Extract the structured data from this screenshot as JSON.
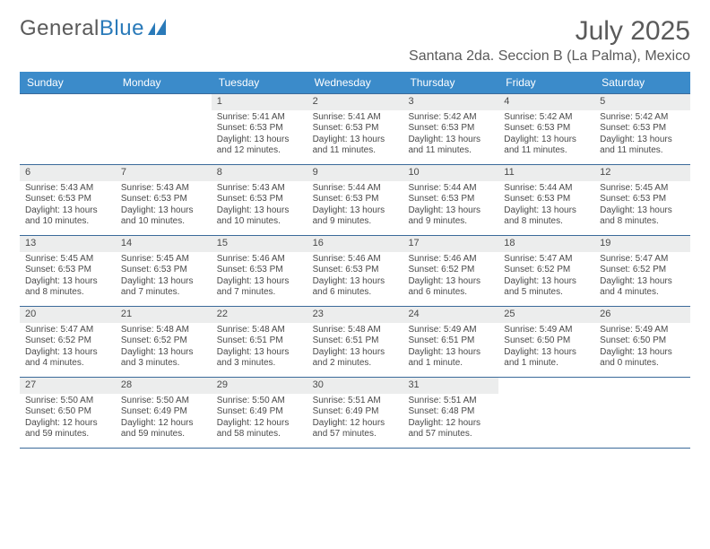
{
  "brand": {
    "part1": "General",
    "part2": "Blue"
  },
  "title": "July 2025",
  "location": "Santana 2da. Seccion B (La Palma), Mexico",
  "colors": {
    "header_bg": "#3b8bca",
    "header_text": "#ffffff",
    "rule": "#3b6a9a",
    "daynum_bg": "#eceded",
    "text": "#4a4a4a",
    "brand_blue": "#2a7ab9"
  },
  "day_names": [
    "Sunday",
    "Monday",
    "Tuesday",
    "Wednesday",
    "Thursday",
    "Friday",
    "Saturday"
  ],
  "first_weekday_index": 2,
  "days": [
    {
      "n": 1,
      "sunrise": "5:41 AM",
      "sunset": "6:53 PM",
      "daylight": "13 hours and 12 minutes."
    },
    {
      "n": 2,
      "sunrise": "5:41 AM",
      "sunset": "6:53 PM",
      "daylight": "13 hours and 11 minutes."
    },
    {
      "n": 3,
      "sunrise": "5:42 AM",
      "sunset": "6:53 PM",
      "daylight": "13 hours and 11 minutes."
    },
    {
      "n": 4,
      "sunrise": "5:42 AM",
      "sunset": "6:53 PM",
      "daylight": "13 hours and 11 minutes."
    },
    {
      "n": 5,
      "sunrise": "5:42 AM",
      "sunset": "6:53 PM",
      "daylight": "13 hours and 11 minutes."
    },
    {
      "n": 6,
      "sunrise": "5:43 AM",
      "sunset": "6:53 PM",
      "daylight": "13 hours and 10 minutes."
    },
    {
      "n": 7,
      "sunrise": "5:43 AM",
      "sunset": "6:53 PM",
      "daylight": "13 hours and 10 minutes."
    },
    {
      "n": 8,
      "sunrise": "5:43 AM",
      "sunset": "6:53 PM",
      "daylight": "13 hours and 10 minutes."
    },
    {
      "n": 9,
      "sunrise": "5:44 AM",
      "sunset": "6:53 PM",
      "daylight": "13 hours and 9 minutes."
    },
    {
      "n": 10,
      "sunrise": "5:44 AM",
      "sunset": "6:53 PM",
      "daylight": "13 hours and 9 minutes."
    },
    {
      "n": 11,
      "sunrise": "5:44 AM",
      "sunset": "6:53 PM",
      "daylight": "13 hours and 8 minutes."
    },
    {
      "n": 12,
      "sunrise": "5:45 AM",
      "sunset": "6:53 PM",
      "daylight": "13 hours and 8 minutes."
    },
    {
      "n": 13,
      "sunrise": "5:45 AM",
      "sunset": "6:53 PM",
      "daylight": "13 hours and 8 minutes."
    },
    {
      "n": 14,
      "sunrise": "5:45 AM",
      "sunset": "6:53 PM",
      "daylight": "13 hours and 7 minutes."
    },
    {
      "n": 15,
      "sunrise": "5:46 AM",
      "sunset": "6:53 PM",
      "daylight": "13 hours and 7 minutes."
    },
    {
      "n": 16,
      "sunrise": "5:46 AM",
      "sunset": "6:53 PM",
      "daylight": "13 hours and 6 minutes."
    },
    {
      "n": 17,
      "sunrise": "5:46 AM",
      "sunset": "6:52 PM",
      "daylight": "13 hours and 6 minutes."
    },
    {
      "n": 18,
      "sunrise": "5:47 AM",
      "sunset": "6:52 PM",
      "daylight": "13 hours and 5 minutes."
    },
    {
      "n": 19,
      "sunrise": "5:47 AM",
      "sunset": "6:52 PM",
      "daylight": "13 hours and 4 minutes."
    },
    {
      "n": 20,
      "sunrise": "5:47 AM",
      "sunset": "6:52 PM",
      "daylight": "13 hours and 4 minutes."
    },
    {
      "n": 21,
      "sunrise": "5:48 AM",
      "sunset": "6:52 PM",
      "daylight": "13 hours and 3 minutes."
    },
    {
      "n": 22,
      "sunrise": "5:48 AM",
      "sunset": "6:51 PM",
      "daylight": "13 hours and 3 minutes."
    },
    {
      "n": 23,
      "sunrise": "5:48 AM",
      "sunset": "6:51 PM",
      "daylight": "13 hours and 2 minutes."
    },
    {
      "n": 24,
      "sunrise": "5:49 AM",
      "sunset": "6:51 PM",
      "daylight": "13 hours and 1 minute."
    },
    {
      "n": 25,
      "sunrise": "5:49 AM",
      "sunset": "6:50 PM",
      "daylight": "13 hours and 1 minute."
    },
    {
      "n": 26,
      "sunrise": "5:49 AM",
      "sunset": "6:50 PM",
      "daylight": "13 hours and 0 minutes."
    },
    {
      "n": 27,
      "sunrise": "5:50 AM",
      "sunset": "6:50 PM",
      "daylight": "12 hours and 59 minutes."
    },
    {
      "n": 28,
      "sunrise": "5:50 AM",
      "sunset": "6:49 PM",
      "daylight": "12 hours and 59 minutes."
    },
    {
      "n": 29,
      "sunrise": "5:50 AM",
      "sunset": "6:49 PM",
      "daylight": "12 hours and 58 minutes."
    },
    {
      "n": 30,
      "sunrise": "5:51 AM",
      "sunset": "6:49 PM",
      "daylight": "12 hours and 57 minutes."
    },
    {
      "n": 31,
      "sunrise": "5:51 AM",
      "sunset": "6:48 PM",
      "daylight": "12 hours and 57 minutes."
    }
  ],
  "labels": {
    "sunrise": "Sunrise:",
    "sunset": "Sunset:",
    "daylight": "Daylight:"
  }
}
